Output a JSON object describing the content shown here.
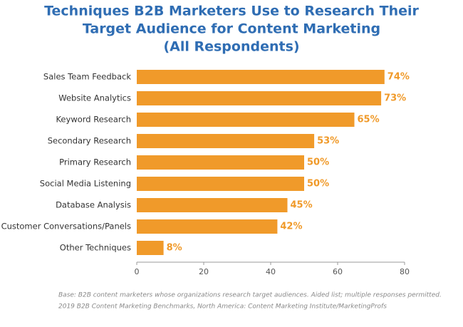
{
  "chart_data": {
    "type": "bar",
    "orientation": "horizontal",
    "title": [
      "Techniques B2B Marketers Use to Research Their",
      "Target Audience for Content Marketing",
      "(All Respondents)"
    ],
    "categories": [
      "Sales Team Feedback",
      "Website Analytics",
      "Keyword Research",
      "Secondary Research",
      "Primary Research",
      "Social Media Listening",
      "Database Analysis",
      "Customer Conversations/Panels",
      "Other Techniques"
    ],
    "values": [
      74,
      73,
      65,
      53,
      50,
      50,
      45,
      42,
      8
    ],
    "value_labels": [
      "74%",
      "73%",
      "65%",
      "53%",
      "50%",
      "50%",
      "45%",
      "42%",
      "8%"
    ],
    "color": "#f09a2a",
    "xlim": [
      0,
      80
    ],
    "xticks": [
      0,
      20,
      40,
      60,
      80
    ],
    "grid": false,
    "notes": [
      "Base: B2B content marketers whose organizations research target audiences. Aided list; multiple responses permitted.",
      "2019 B2B Content Marketing Benchmarks, North America: Content Marketing Institute/MarketingProfs"
    ]
  }
}
